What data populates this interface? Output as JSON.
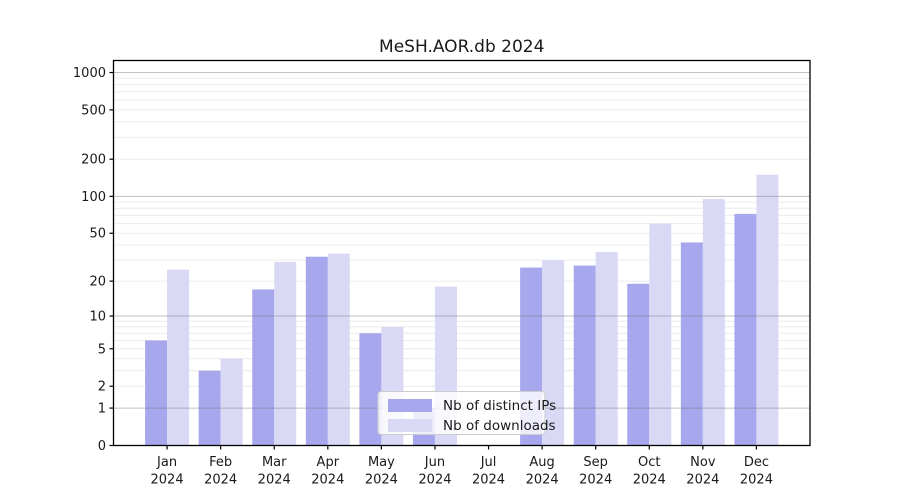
{
  "chart_data": {
    "type": "bar",
    "title": "MeSH.AOR.db 2024",
    "categories": [
      "Jan",
      "Feb",
      "Mar",
      "Apr",
      "May",
      "Jun",
      "Jul",
      "Aug",
      "Sep",
      "Oct",
      "Nov",
      "Dec"
    ],
    "category_year_line": "2024",
    "series": [
      {
        "name": "Nb of distinct IPs",
        "color": "#a7a7ee",
        "values": [
          6,
          3,
          17,
          32,
          7,
          1,
          0,
          26,
          27,
          19,
          42,
          72
        ]
      },
      {
        "name": "Nb of downloads",
        "color": "#d9d9f6",
        "values": [
          25,
          4,
          29,
          34,
          8,
          18,
          0,
          30,
          35,
          60,
          95,
          150
        ]
      }
    ],
    "y_axis": {
      "scale": "log10(1+x)",
      "tick_values": [
        0,
        1,
        2,
        5,
        10,
        20,
        50,
        100,
        200,
        500,
        1000
      ],
      "tick_labels": [
        "0",
        "1",
        "2",
        "5",
        "10",
        "20",
        "50",
        "100",
        "200",
        "500",
        "1000"
      ],
      "major_gridlines": [
        1,
        10,
        100,
        1000
      ],
      "minor_gridlines": [
        2,
        3,
        4,
        5,
        6,
        7,
        8,
        9,
        20,
        30,
        40,
        50,
        60,
        70,
        80,
        90,
        200,
        300,
        400,
        500,
        600,
        700,
        800,
        900
      ],
      "ylim": [
        0,
        1250
      ]
    },
    "x_axis": {
      "label_lines": 2
    },
    "legend": {
      "position": "lower center",
      "entries": [
        "Nb of distinct IPs",
        "Nb of downloads"
      ]
    },
    "grid": true,
    "colors": {
      "background": "#ffffff",
      "axis": "#000000",
      "major_grid": "#c3c3c3",
      "minor_grid": "#ececec",
      "text": "#1a1a1a",
      "legend_border": "#cccccc",
      "legend_background": "rgba(255,255,255,0.8)"
    }
  }
}
